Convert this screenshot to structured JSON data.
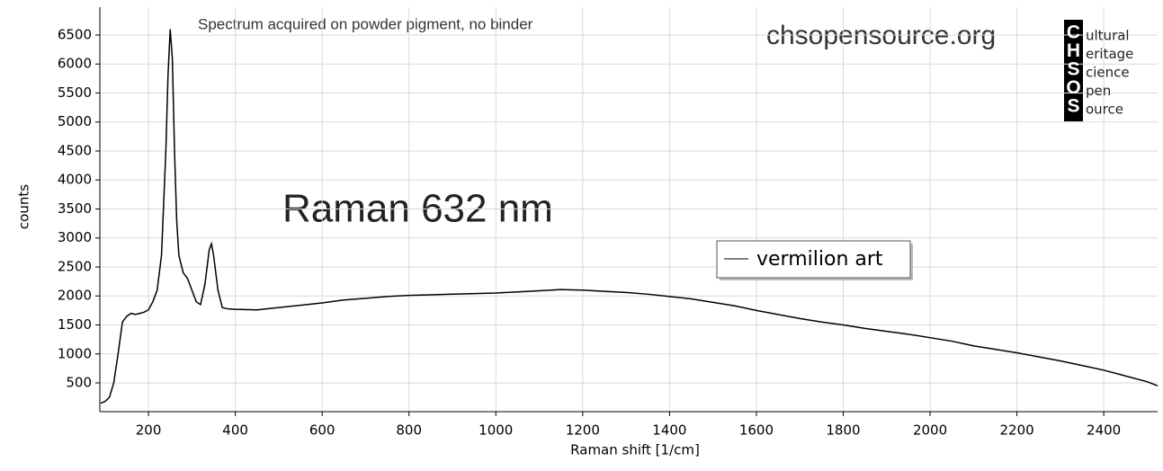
{
  "chart_data": {
    "type": "line",
    "annotation": "Spectrum acquired on powder pigment, no binder",
    "website": "chsopensource.org",
    "title": "Raman 632 nm",
    "logo": {
      "letters": [
        "C",
        "H",
        "S",
        "O",
        "S"
      ],
      "words": [
        "ultural",
        "eritage",
        "cience",
        "pen",
        "ource"
      ]
    },
    "x_label": "Raman shift [1/cm]",
    "y_label": "counts",
    "xlim": [
      88,
      2524
    ],
    "ylim": [
      4,
      6980
    ],
    "xticks": [
      200,
      400,
      600,
      800,
      1000,
      1200,
      1400,
      1600,
      1800,
      2000,
      2200,
      2400
    ],
    "yticks": [
      500,
      1000,
      1500,
      2000,
      2500,
      3000,
      3500,
      4000,
      4500,
      5000,
      5500,
      6000,
      6500
    ],
    "grid": true,
    "legend": "right",
    "x": [
      90,
      100,
      110,
      120,
      130,
      140,
      150,
      160,
      170,
      180,
      190,
      200,
      210,
      220,
      230,
      240,
      245,
      250,
      255,
      260,
      265,
      270,
      280,
      290,
      300,
      310,
      320,
      330,
      340,
      345,
      350,
      360,
      370,
      380,
      400,
      450,
      500,
      550,
      600,
      650,
      700,
      750,
      800,
      850,
      900,
      950,
      1000,
      1050,
      1100,
      1150,
      1200,
      1250,
      1300,
      1350,
      1400,
      1450,
      1500,
      1550,
      1600,
      1650,
      1700,
      1750,
      1800,
      1850,
      1900,
      1950,
      2000,
      2050,
      2100,
      2150,
      2200,
      2250,
      2300,
      2350,
      2400,
      2450,
      2500,
      2524
    ],
    "series": [
      {
        "name": "vermilion art",
        "color": "#000000",
        "values": [
          150,
          180,
          250,
          500,
          1000,
          1550,
          1650,
          1700,
          1680,
          1700,
          1720,
          1760,
          1900,
          2100,
          2700,
          4500,
          5800,
          6600,
          6100,
          4500,
          3300,
          2700,
          2400,
          2300,
          2100,
          1900,
          1850,
          2200,
          2800,
          2900,
          2700,
          2100,
          1800,
          1780,
          1770,
          1760,
          1800,
          1840,
          1880,
          1930,
          1960,
          1990,
          2010,
          2020,
          2030,
          2040,
          2050,
          2070,
          2090,
          2110,
          2100,
          2080,
          2060,
          2030,
          1990,
          1950,
          1890,
          1830,
          1750,
          1680,
          1610,
          1550,
          1500,
          1440,
          1390,
          1340,
          1280,
          1220,
          1140,
          1080,
          1020,
          950,
          880,
          800,
          720,
          620,
          520,
          450
        ]
      }
    ]
  }
}
